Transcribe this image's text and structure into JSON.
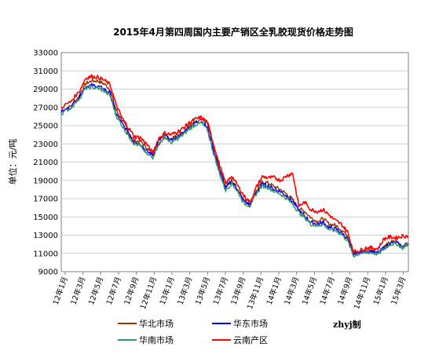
{
  "chart_data": {
    "type": "line",
    "title": "2015年4月第四周国内主要产销区全乳胶现货价格走势图",
    "ylabel": "单位：元/吨",
    "ylim": [
      9000,
      33000
    ],
    "yticks": [
      9000,
      11000,
      13000,
      15000,
      17000,
      19000,
      21000,
      23000,
      25000,
      27000,
      29000,
      31000,
      33000
    ],
    "xticks": [
      "12年1月",
      "12年3月",
      "12年5月",
      "12年7月",
      "12年9月",
      "12年11月",
      "13年1月",
      "13年3月",
      "13年5月",
      "13年7月",
      "13年9月",
      "13年11月",
      "14年1月",
      "14年3月",
      "14年5月",
      "14年7月",
      "14年9月",
      "14年11月",
      "15年1月",
      "15年3月"
    ],
    "grid": true,
    "legend_position": "bottom",
    "credit": "zhyj制",
    "series": [
      {
        "name": "华北市场",
        "color": "#993300",
        "values": [
          [
            0,
            26600
          ],
          [
            3,
            27100
          ],
          [
            6,
            28300
          ],
          [
            8,
            29600
          ],
          [
            10,
            29900
          ],
          [
            12,
            29900
          ],
          [
            14,
            29600
          ],
          [
            16,
            29000
          ],
          [
            18,
            26700
          ],
          [
            20,
            25600
          ],
          [
            22,
            24400
          ],
          [
            24,
            23300
          ],
          [
            26,
            23300
          ],
          [
            28,
            22600
          ],
          [
            30,
            21800
          ],
          [
            32,
            23000
          ],
          [
            34,
            23800
          ],
          [
            36,
            23600
          ],
          [
            38,
            23900
          ],
          [
            40,
            24300
          ],
          [
            42,
            25000
          ],
          [
            44,
            25300
          ],
          [
            46,
            25600
          ],
          [
            48,
            25300
          ],
          [
            50,
            22700
          ],
          [
            52,
            20400
          ],
          [
            54,
            18300
          ],
          [
            56,
            19000
          ],
          [
            58,
            18000
          ],
          [
            60,
            16800
          ],
          [
            62,
            16300
          ],
          [
            64,
            17800
          ],
          [
            66,
            18800
          ],
          [
            68,
            18700
          ],
          [
            70,
            18300
          ],
          [
            72,
            18000
          ],
          [
            74,
            17500
          ],
          [
            76,
            16900
          ],
          [
            78,
            15900
          ],
          [
            80,
            15600
          ],
          [
            82,
            14900
          ],
          [
            84,
            14500
          ],
          [
            86,
            14800
          ],
          [
            88,
            14200
          ],
          [
            90,
            14100
          ],
          [
            92,
            13600
          ],
          [
            94,
            13000
          ],
          [
            96,
            11000
          ],
          [
            98,
            11100
          ],
          [
            100,
            11300
          ],
          [
            102,
            11300
          ],
          [
            104,
            11100
          ],
          [
            106,
            11700
          ],
          [
            108,
            12200
          ],
          [
            110,
            12300
          ],
          [
            112,
            11800
          ],
          [
            114,
            12100
          ]
        ]
      },
      {
        "name": "华东市场",
        "color": "#0000ff",
        "values": [
          [
            0,
            26500
          ],
          [
            3,
            27000
          ],
          [
            6,
            28200
          ],
          [
            8,
            29300
          ],
          [
            10,
            29400
          ],
          [
            12,
            29300
          ],
          [
            14,
            29000
          ],
          [
            16,
            28600
          ],
          [
            18,
            26300
          ],
          [
            20,
            25200
          ],
          [
            22,
            24200
          ],
          [
            24,
            23200
          ],
          [
            26,
            23000
          ],
          [
            28,
            22200
          ],
          [
            30,
            21800
          ],
          [
            32,
            23300
          ],
          [
            34,
            24000
          ],
          [
            36,
            23300
          ],
          [
            38,
            23700
          ],
          [
            40,
            24200
          ],
          [
            42,
            24800
          ],
          [
            44,
            25300
          ],
          [
            46,
            25500
          ],
          [
            48,
            24800
          ],
          [
            50,
            22300
          ],
          [
            52,
            20000
          ],
          [
            54,
            18100
          ],
          [
            56,
            18900
          ],
          [
            58,
            17900
          ],
          [
            60,
            16700
          ],
          [
            62,
            16400
          ],
          [
            64,
            17700
          ],
          [
            66,
            18600
          ],
          [
            68,
            18400
          ],
          [
            70,
            18000
          ],
          [
            72,
            17800
          ],
          [
            74,
            17300
          ],
          [
            76,
            16700
          ],
          [
            78,
            15700
          ],
          [
            80,
            15100
          ],
          [
            82,
            14400
          ],
          [
            84,
            14200
          ],
          [
            86,
            14400
          ],
          [
            88,
            13800
          ],
          [
            90,
            13700
          ],
          [
            92,
            13300
          ],
          [
            94,
            12600
          ],
          [
            96,
            10900
          ],
          [
            98,
            11100
          ],
          [
            100,
            11200
          ],
          [
            102,
            11200
          ],
          [
            104,
            11000
          ],
          [
            106,
            11600
          ],
          [
            108,
            12100
          ],
          [
            110,
            12200
          ],
          [
            112,
            11700
          ],
          [
            114,
            12100
          ]
        ]
      },
      {
        "name": "华南市场",
        "color": "#339966",
        "values": [
          [
            0,
            26300
          ],
          [
            3,
            26900
          ],
          [
            6,
            28000
          ],
          [
            8,
            29100
          ],
          [
            10,
            29200
          ],
          [
            12,
            29100
          ],
          [
            14,
            28800
          ],
          [
            16,
            28300
          ],
          [
            18,
            26100
          ],
          [
            20,
            25000
          ],
          [
            22,
            23900
          ],
          [
            24,
            23000
          ],
          [
            26,
            22800
          ],
          [
            28,
            21900
          ],
          [
            30,
            21500
          ],
          [
            32,
            23000
          ],
          [
            34,
            23800
          ],
          [
            36,
            23100
          ],
          [
            38,
            23500
          ],
          [
            40,
            24000
          ],
          [
            42,
            24600
          ],
          [
            44,
            25100
          ],
          [
            46,
            25300
          ],
          [
            48,
            24500
          ],
          [
            50,
            22000
          ],
          [
            52,
            19700
          ],
          [
            54,
            17900
          ],
          [
            56,
            18700
          ],
          [
            58,
            17700
          ],
          [
            60,
            16500
          ],
          [
            62,
            16200
          ],
          [
            64,
            17500
          ],
          [
            66,
            18400
          ],
          [
            68,
            18200
          ],
          [
            70,
            17800
          ],
          [
            72,
            17500
          ],
          [
            74,
            17000
          ],
          [
            76,
            16400
          ],
          [
            78,
            15500
          ],
          [
            80,
            14900
          ],
          [
            82,
            14200
          ],
          [
            84,
            14000
          ],
          [
            86,
            14200
          ],
          [
            88,
            13600
          ],
          [
            90,
            13500
          ],
          [
            92,
            13100
          ],
          [
            94,
            12400
          ],
          [
            96,
            10700
          ],
          [
            98,
            11000
          ],
          [
            100,
            11100
          ],
          [
            102,
            11100
          ],
          [
            104,
            10900
          ],
          [
            106,
            11500
          ],
          [
            108,
            12000
          ],
          [
            110,
            12100
          ],
          [
            112,
            11600
          ],
          [
            114,
            12000
          ]
        ]
      },
      {
        "name": "云南产区",
        "color": "#ff0000",
        "values": [
          [
            0,
            27000
          ],
          [
            3,
            27600
          ],
          [
            6,
            28800
          ],
          [
            8,
            30200
          ],
          [
            10,
            30400
          ],
          [
            12,
            30300
          ],
          [
            14,
            30000
          ],
          [
            16,
            29500
          ],
          [
            18,
            27300
          ],
          [
            20,
            25800
          ],
          [
            22,
            24800
          ],
          [
            24,
            23800
          ],
          [
            26,
            23700
          ],
          [
            28,
            23000
          ],
          [
            30,
            22000
          ],
          [
            32,
            23600
          ],
          [
            34,
            24200
          ],
          [
            36,
            24000
          ],
          [
            38,
            24300
          ],
          [
            40,
            24700
          ],
          [
            42,
            25300
          ],
          [
            44,
            25700
          ],
          [
            46,
            25900
          ],
          [
            48,
            25400
          ],
          [
            50,
            23000
          ],
          [
            52,
            20700
          ],
          [
            54,
            18600
          ],
          [
            56,
            19500
          ],
          [
            58,
            18400
          ],
          [
            60,
            17300
          ],
          [
            62,
            16600
          ],
          [
            64,
            18200
          ],
          [
            66,
            19400
          ],
          [
            68,
            19300
          ],
          [
            70,
            19300
          ],
          [
            72,
            19000
          ],
          [
            74,
            19500
          ],
          [
            76,
            19800
          ],
          [
            78,
            16200
          ],
          [
            80,
            16600
          ],
          [
            82,
            15800
          ],
          [
            84,
            15600
          ],
          [
            86,
            15800
          ],
          [
            88,
            15200
          ],
          [
            90,
            14600
          ],
          [
            92,
            14200
          ],
          [
            94,
            13400
          ],
          [
            96,
            11200
          ],
          [
            98,
            11300
          ],
          [
            100,
            11600
          ],
          [
            102,
            11600
          ],
          [
            104,
            11500
          ],
          [
            106,
            12600
          ],
          [
            108,
            12800
          ],
          [
            110,
            12700
          ],
          [
            112,
            12900
          ],
          [
            114,
            12900
          ]
        ]
      }
    ]
  }
}
